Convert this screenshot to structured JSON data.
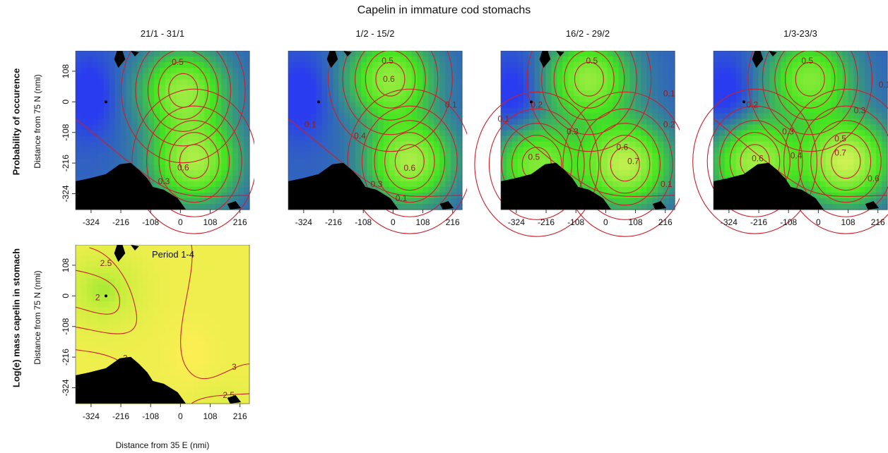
{
  "figure": {
    "title": "Capelin in immature cod stomachs",
    "row_labels": [
      "Probability of occurence",
      "Log(e) mass capelin in stomach"
    ],
    "y_axis_title": "Distance from 75 N (nmi)",
    "x_axis_title": "Distance from 35 E (nmi)",
    "x_ticks": [
      "-324",
      "-216",
      "-108",
      "0",
      "108",
      "216"
    ],
    "y_ticks": [
      "108",
      "0",
      "-108",
      "-216",
      "-324"
    ]
  },
  "chart_data": [
    {
      "type": "heatmap",
      "title": "21/1 - 31/1",
      "variable": "Probability of occurence",
      "xlabel": "",
      "ylabel": "Distance from 75 N (nmi)",
      "xlim": [
        -380,
        250
      ],
      "ylim": [
        -380,
        180
      ],
      "colors": {
        "low": "#2a3cf0",
        "mid": "#44e420",
        "high": "#f5f562",
        "contour": "#cc1f2a",
        "land": "#000000"
      },
      "hotspots": [
        [
          10,
          40,
          0.6
        ],
        [
          50,
          -210,
          0.65
        ]
      ],
      "contour_labels": [
        {
          "x": -10,
          "y": 140,
          "text": "0.5"
        },
        {
          "x": 10,
          "y": -232,
          "text": "0.6"
        },
        {
          "x": -60,
          "y": -280,
          "text": "0.3"
        }
      ]
    },
    {
      "type": "heatmap",
      "title": "1/2 - 15/2",
      "variable": "Probability of occurence",
      "xlabel": "",
      "ylabel": "",
      "xlim": [
        -380,
        250
      ],
      "ylim": [
        -380,
        180
      ],
      "colors": {
        "low": "#2a3cf0",
        "mid": "#44e420",
        "high": "#f5f562",
        "contour": "#cc1f2a",
        "land": "#000000"
      },
      "hotspots": [
        [
          -10,
          80,
          0.6
        ],
        [
          60,
          -210,
          0.66
        ]
      ],
      "contour_labels": [
        {
          "x": -20,
          "y": 145,
          "text": "0.5"
        },
        {
          "x": -15,
          "y": 80,
          "text": "0.6"
        },
        {
          "x": -120,
          "y": -120,
          "text": "0.4"
        },
        {
          "x": 60,
          "y": -233,
          "text": "0.6"
        },
        {
          "x": -300,
          "y": -80,
          "text": "0.1"
        },
        {
          "x": 210,
          "y": -10,
          "text": "0.1"
        },
        {
          "x": -60,
          "y": -290,
          "text": "0.3"
        },
        {
          "x": 30,
          "y": -340,
          "text": "0.1"
        }
      ]
    },
    {
      "type": "heatmap",
      "title": "16/2 - 29/2",
      "variable": "Probability of occurence",
      "xlabel": "",
      "ylabel": "",
      "xlim": [
        -380,
        250
      ],
      "ylim": [
        -380,
        180
      ],
      "colors": {
        "low": "#2a3cf0",
        "mid": "#44e420",
        "high": "#f5f562",
        "contour": "#cc1f2a",
        "land": "#000000"
      },
      "hotspots": [
        [
          -60,
          80,
          0.6
        ],
        [
          70,
          -220,
          0.72
        ],
        [
          -250,
          -220,
          0.55
        ]
      ],
      "contour_labels": [
        {
          "x": -50,
          "y": 145,
          "text": "0.5"
        },
        {
          "x": -250,
          "y": -10,
          "text": "0.2"
        },
        {
          "x": -370,
          "y": -60,
          "text": "0.1"
        },
        {
          "x": -120,
          "y": -105,
          "text": "0.3"
        },
        {
          "x": -260,
          "y": -195,
          "text": "0.5"
        },
        {
          "x": 60,
          "y": -160,
          "text": "0.6"
        },
        {
          "x": 100,
          "y": -210,
          "text": "0.7"
        },
        {
          "x": 230,
          "y": 30,
          "text": "0.1"
        },
        {
          "x": 230,
          "y": -80,
          "text": "0.2"
        },
        {
          "x": 220,
          "y": -290,
          "text": "0.1"
        }
      ]
    },
    {
      "type": "heatmap",
      "title": "1/3-23/3",
      "variable": "Probability of occurence",
      "xlabel": "",
      "ylabel": "",
      "xlim": [
        -380,
        250
      ],
      "ylim": [
        -380,
        180
      ],
      "colors": {
        "low": "#2a3cf0",
        "mid": "#44e420",
        "high": "#f5f562",
        "contour": "#cc1f2a",
        "land": "#000000"
      },
      "hotspots": [
        [
          -30,
          80,
          0.55
        ],
        [
          100,
          -210,
          0.76
        ],
        [
          -230,
          -210,
          0.65
        ]
      ],
      "contour_labels": [
        {
          "x": -40,
          "y": 145,
          "text": "0.5"
        },
        {
          "x": -240,
          "y": -10,
          "text": "0.2"
        },
        {
          "x": -110,
          "y": -105,
          "text": "0.3"
        },
        {
          "x": 80,
          "y": -130,
          "text": "0.5"
        },
        {
          "x": 80,
          "y": -180,
          "text": "0.7"
        },
        {
          "x": -220,
          "y": -200,
          "text": "0.6"
        },
        {
          "x": -80,
          "y": -190,
          "text": "0.4"
        },
        {
          "x": 150,
          "y": -30,
          "text": "0.3"
        },
        {
          "x": 200,
          "y": -270,
          "text": "0.6"
        },
        {
          "x": 240,
          "y": 60,
          "text": "0.1"
        }
      ]
    },
    {
      "type": "heatmap",
      "title": "Period 1-4",
      "variable": "Log(e) mass capelin in stomach",
      "xlabel": "Distance from 35 E (nmi)",
      "ylabel": "Distance from 75 N (nmi)",
      "xlim": [
        -380,
        250
      ],
      "ylim": [
        -380,
        180
      ],
      "colors": {
        "low": "#39d820",
        "mid": "#c8ee3c",
        "high": "#ffee55",
        "contour": "#cc1f2a",
        "land": "#000000"
      },
      "contour_labels": [
        {
          "x": -270,
          "y": 115,
          "text": "2.5"
        },
        {
          "x": -300,
          "y": -5,
          "text": "2"
        },
        {
          "x": -200,
          "y": -220,
          "text": "3"
        },
        {
          "x": 195,
          "y": -250,
          "text": "3"
        },
        {
          "x": 175,
          "y": -350,
          "text": "2.5"
        }
      ]
    }
  ]
}
